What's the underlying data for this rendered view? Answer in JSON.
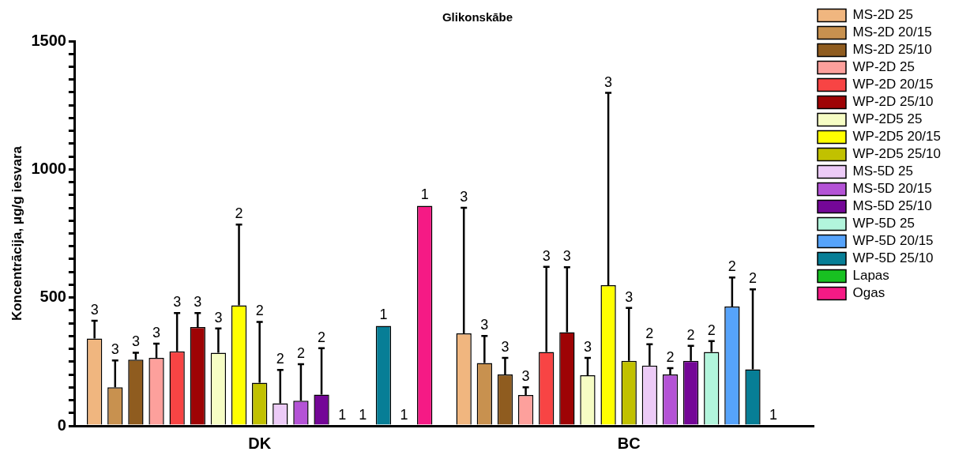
{
  "chart_data": {
    "type": "bar",
    "title": "Glikonskābe",
    "ylabel": "Koncentrācija, μg/g iesvara",
    "categories": [
      "DK",
      "BC"
    ],
    "ylim": [
      0,
      1500
    ],
    "yticks": [
      0,
      {
        "value": 50,
        "label": null
      },
      {
        "value": 100,
        "label": null
      },
      {
        "value": 150,
        "label": null
      },
      {
        "value": 200,
        "label": null
      },
      {
        "value": 250,
        "label": null
      },
      {
        "value": 300,
        "label": null
      },
      {
        "value": 350,
        "label": null
      },
      {
        "value": 400,
        "label": null
      },
      {
        "value": 450,
        "label": null
      },
      500,
      {
        "value": 550,
        "label": null
      },
      {
        "value": 600,
        "label": null
      },
      {
        "value": 650,
        "label": null
      },
      {
        "value": 700,
        "label": null
      },
      {
        "value": 750,
        "label": null
      },
      {
        "value": 800,
        "label": null
      },
      {
        "value": 850,
        "label": null
      },
      {
        "value": 900,
        "label": null
      },
      {
        "value": 950,
        "label": null
      },
      1000,
      {
        "value": 1050,
        "label": null
      },
      {
        "value": 1100,
        "label": null
      },
      {
        "value": 1150,
        "label": null
      },
      {
        "value": 1200,
        "label": null
      },
      {
        "value": 1250,
        "label": null
      },
      {
        "value": 1300,
        "label": null
      },
      {
        "value": 1350,
        "label": null
      },
      {
        "value": 1400,
        "label": null
      },
      {
        "value": 1450,
        "label": null
      },
      1500
    ],
    "grid": false,
    "legend": "right",
    "series": [
      {
        "name": "MS-2D 25",
        "color": "#f0b67f",
        "values": [
          340,
          360
        ],
        "errors": [
          [
            340,
            410
          ],
          [
            360,
            850
          ]
        ]
      },
      {
        "name": "MS-2D 20/15",
        "color": "#c8914f",
        "values": [
          150,
          245
        ],
        "errors": [
          [
            150,
            255
          ],
          [
            245,
            350
          ]
        ]
      },
      {
        "name": "MS-2D 25/10",
        "color": "#8f5c1f",
        "values": [
          258,
          200
        ],
        "errors": [
          [
            258,
            285
          ],
          [
            200,
            265
          ]
        ]
      },
      {
        "name": "WP-2D 25",
        "color": "#fda09c",
        "values": [
          265,
          120
        ],
        "errors": [
          [
            265,
            320
          ],
          [
            120,
            150
          ]
        ]
      },
      {
        "name": "WP-2D 20/15",
        "color": "#f84444",
        "values": [
          290,
          288
        ],
        "errors": [
          [
            290,
            440
          ],
          [
            288,
            620
          ]
        ]
      },
      {
        "name": "WP-2D 25/10",
        "color": "#9e0305",
        "values": [
          385,
          365
        ],
        "errors": [
          [
            385,
            440
          ],
          [
            365,
            618
          ]
        ]
      },
      {
        "name": "WP-2D5 25",
        "color": "#f6fdc4",
        "values": [
          285,
          197
        ],
        "errors": [
          [
            285,
            380
          ],
          [
            197,
            265
          ]
        ]
      },
      {
        "name": "WP-2D5 20/15",
        "color": "#ffff00",
        "values": [
          470,
          548
        ],
        "errors": [
          [
            470,
            785
          ],
          [
            548,
            1298
          ]
        ]
      },
      {
        "name": "WP-2D5 25/10",
        "color": "#c1c100",
        "values": [
          168,
          253
        ],
        "errors": [
          [
            168,
            405
          ],
          [
            253,
            460
          ]
        ]
      },
      {
        "name": "MS-5D 25",
        "color": "#eccbf7",
        "values": [
          88,
          235
        ],
        "errors": [
          [
            88,
            218
          ],
          [
            235,
            318
          ]
        ]
      },
      {
        "name": "MS-5D 20/15",
        "color": "#b453d6",
        "values": [
          98,
          200
        ],
        "errors": [
          [
            98,
            240
          ],
          [
            200,
            225
          ]
        ]
      },
      {
        "name": "MS-5D 25/10",
        "color": "#740797",
        "values": [
          122,
          253
        ],
        "errors": [
          [
            122,
            303
          ],
          [
            253,
            312
          ]
        ]
      },
      {
        "name": "WP-5D 25",
        "color": "#b2f5dc",
        "values": [
          0,
          288
        ],
        "errors": [
          null,
          [
            288,
            330
          ]
        ]
      },
      {
        "name": "WP-5D 20/15",
        "color": "#56a3fb",
        "values": [
          0,
          465
        ],
        "errors": [
          null,
          [
            465,
            578
          ]
        ]
      },
      {
        "name": "WP-5D 25/10",
        "color": "#077e96",
        "values": [
          390,
          220
        ],
        "errors": [
          null,
          [
            220,
            532
          ]
        ]
      },
      {
        "name": "Lapas",
        "color": "#18c121",
        "values": [
          0,
          0
        ],
        "errors": [
          null,
          null
        ]
      },
      {
        "name": "Ogas",
        "color": "#f51a85",
        "values": [
          858,
          null
        ],
        "errors": [
          null,
          null
        ]
      }
    ],
    "annotations": [
      "3",
      "3",
      "3",
      "3",
      "3",
      "3",
      "3",
      "2",
      "2",
      "2",
      "2",
      "2",
      "1",
      "1",
      "1",
      "1",
      "1",
      "3",
      "3",
      "3",
      "3",
      "3",
      "3",
      "3",
      "3",
      "3",
      "2",
      "2",
      "2",
      "2",
      "2",
      "2",
      "1"
    ]
  }
}
